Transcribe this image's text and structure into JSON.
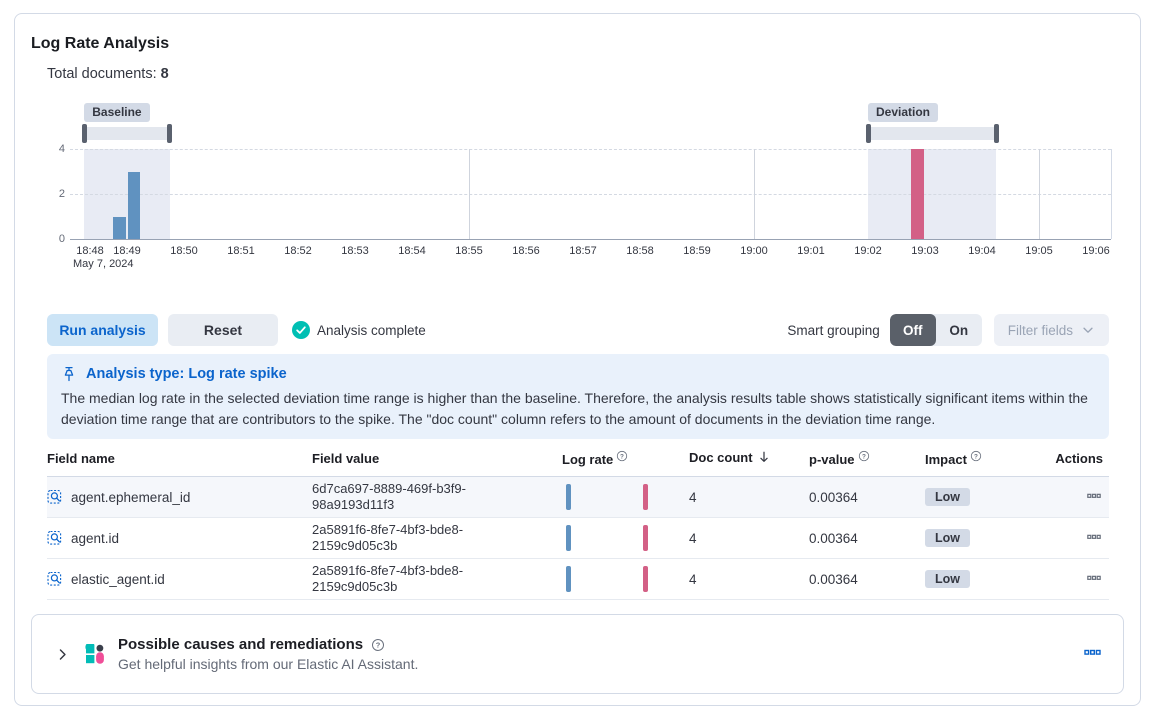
{
  "page": {
    "title": "Log Rate Analysis",
    "total_documents_label": "Total documents:",
    "total_documents_value": "8"
  },
  "chart_data": {
    "type": "bar",
    "x_ticks": [
      "18:48",
      "18:49",
      "18:50",
      "18:51",
      "18:52",
      "18:53",
      "18:54",
      "18:55",
      "18:56",
      "18:57",
      "18:58",
      "18:59",
      "19:00",
      "19:01",
      "19:02",
      "19:03",
      "19:04",
      "19:05",
      "19:06"
    ],
    "x_date_label": "May 7, 2024",
    "y_ticks": [
      0,
      2,
      4
    ],
    "ylim": [
      0,
      4
    ],
    "grid_x": [
      "18:55",
      "19:00",
      "19:05"
    ],
    "bucket_seconds": 15,
    "baseline_brush": {
      "label": "Baseline",
      "from": "18:48:15",
      "to": "18:49:45"
    },
    "deviation_brush": {
      "label": "Deviation",
      "from": "19:02:00",
      "to": "19:04:15"
    },
    "series": [
      {
        "name": "baseline-doc-count",
        "color": "#6092C0",
        "bars": [
          {
            "start": "18:48:45",
            "doc_count": 1
          },
          {
            "start": "18:49:00",
            "doc_count": 3
          }
        ]
      },
      {
        "name": "deviation-doc-count",
        "color": "#D36086",
        "bars": [
          {
            "start": "19:02:45",
            "doc_count": 4
          }
        ]
      }
    ]
  },
  "controls": {
    "run_label": "Run analysis",
    "reset_label": "Reset",
    "status_label": "Analysis complete",
    "smart_grouping_label": "Smart grouping",
    "off_label": "Off",
    "on_label": "On",
    "filter_fields_label": "Filter fields"
  },
  "callout": {
    "title": "Analysis type: Log rate spike",
    "body": "The median log rate in the selected deviation time range is higher than the baseline. Therefore, the analysis results table shows statistically significant items within the deviation time range that are contributors to the spike. The \"doc count\" column refers to the amount of documents in the deviation time range."
  },
  "table": {
    "headers": [
      {
        "label": "Field name"
      },
      {
        "label": "Field value"
      },
      {
        "label": "Log rate",
        "info": true
      },
      {
        "label": "Doc count",
        "sorted": "desc"
      },
      {
        "label": "p-value",
        "info": true
      },
      {
        "label": "Impact",
        "info": true
      },
      {
        "label": "Actions"
      }
    ],
    "rows": [
      {
        "field_name": "agent.ephemeral_id",
        "field_value": "6d7ca697-8889-469f-b3f9-98a9193d11f3",
        "doc_count": "4",
        "p_value": "0.00364",
        "impact": "Low"
      },
      {
        "field_name": "agent.id",
        "field_value": "2a5891f6-8fe7-4bf3-bde8-2159c9d05c3b",
        "doc_count": "4",
        "p_value": "0.00364",
        "impact": "Low"
      },
      {
        "field_name": "elastic_agent.id",
        "field_value": "2a5891f6-8fe7-4bf3-bde8-2159c9d05c3b",
        "doc_count": "4",
        "p_value": "0.00364",
        "impact": "Low"
      }
    ]
  },
  "footer": {
    "title": "Possible causes and remediations",
    "subtitle": "Get helpful insights from our Elastic AI Assistant."
  },
  "colors": {
    "accent_blue": "#0B64CC",
    "bar_blue": "#6092C0",
    "bar_pink": "#D36086",
    "success_teal": "#00BFB3",
    "callout_bg": "#E9F1FB",
    "badge_bg": "#D3DAE6",
    "toggle_off_bg": "#5A6069",
    "ai_pink": "#F04E98"
  }
}
